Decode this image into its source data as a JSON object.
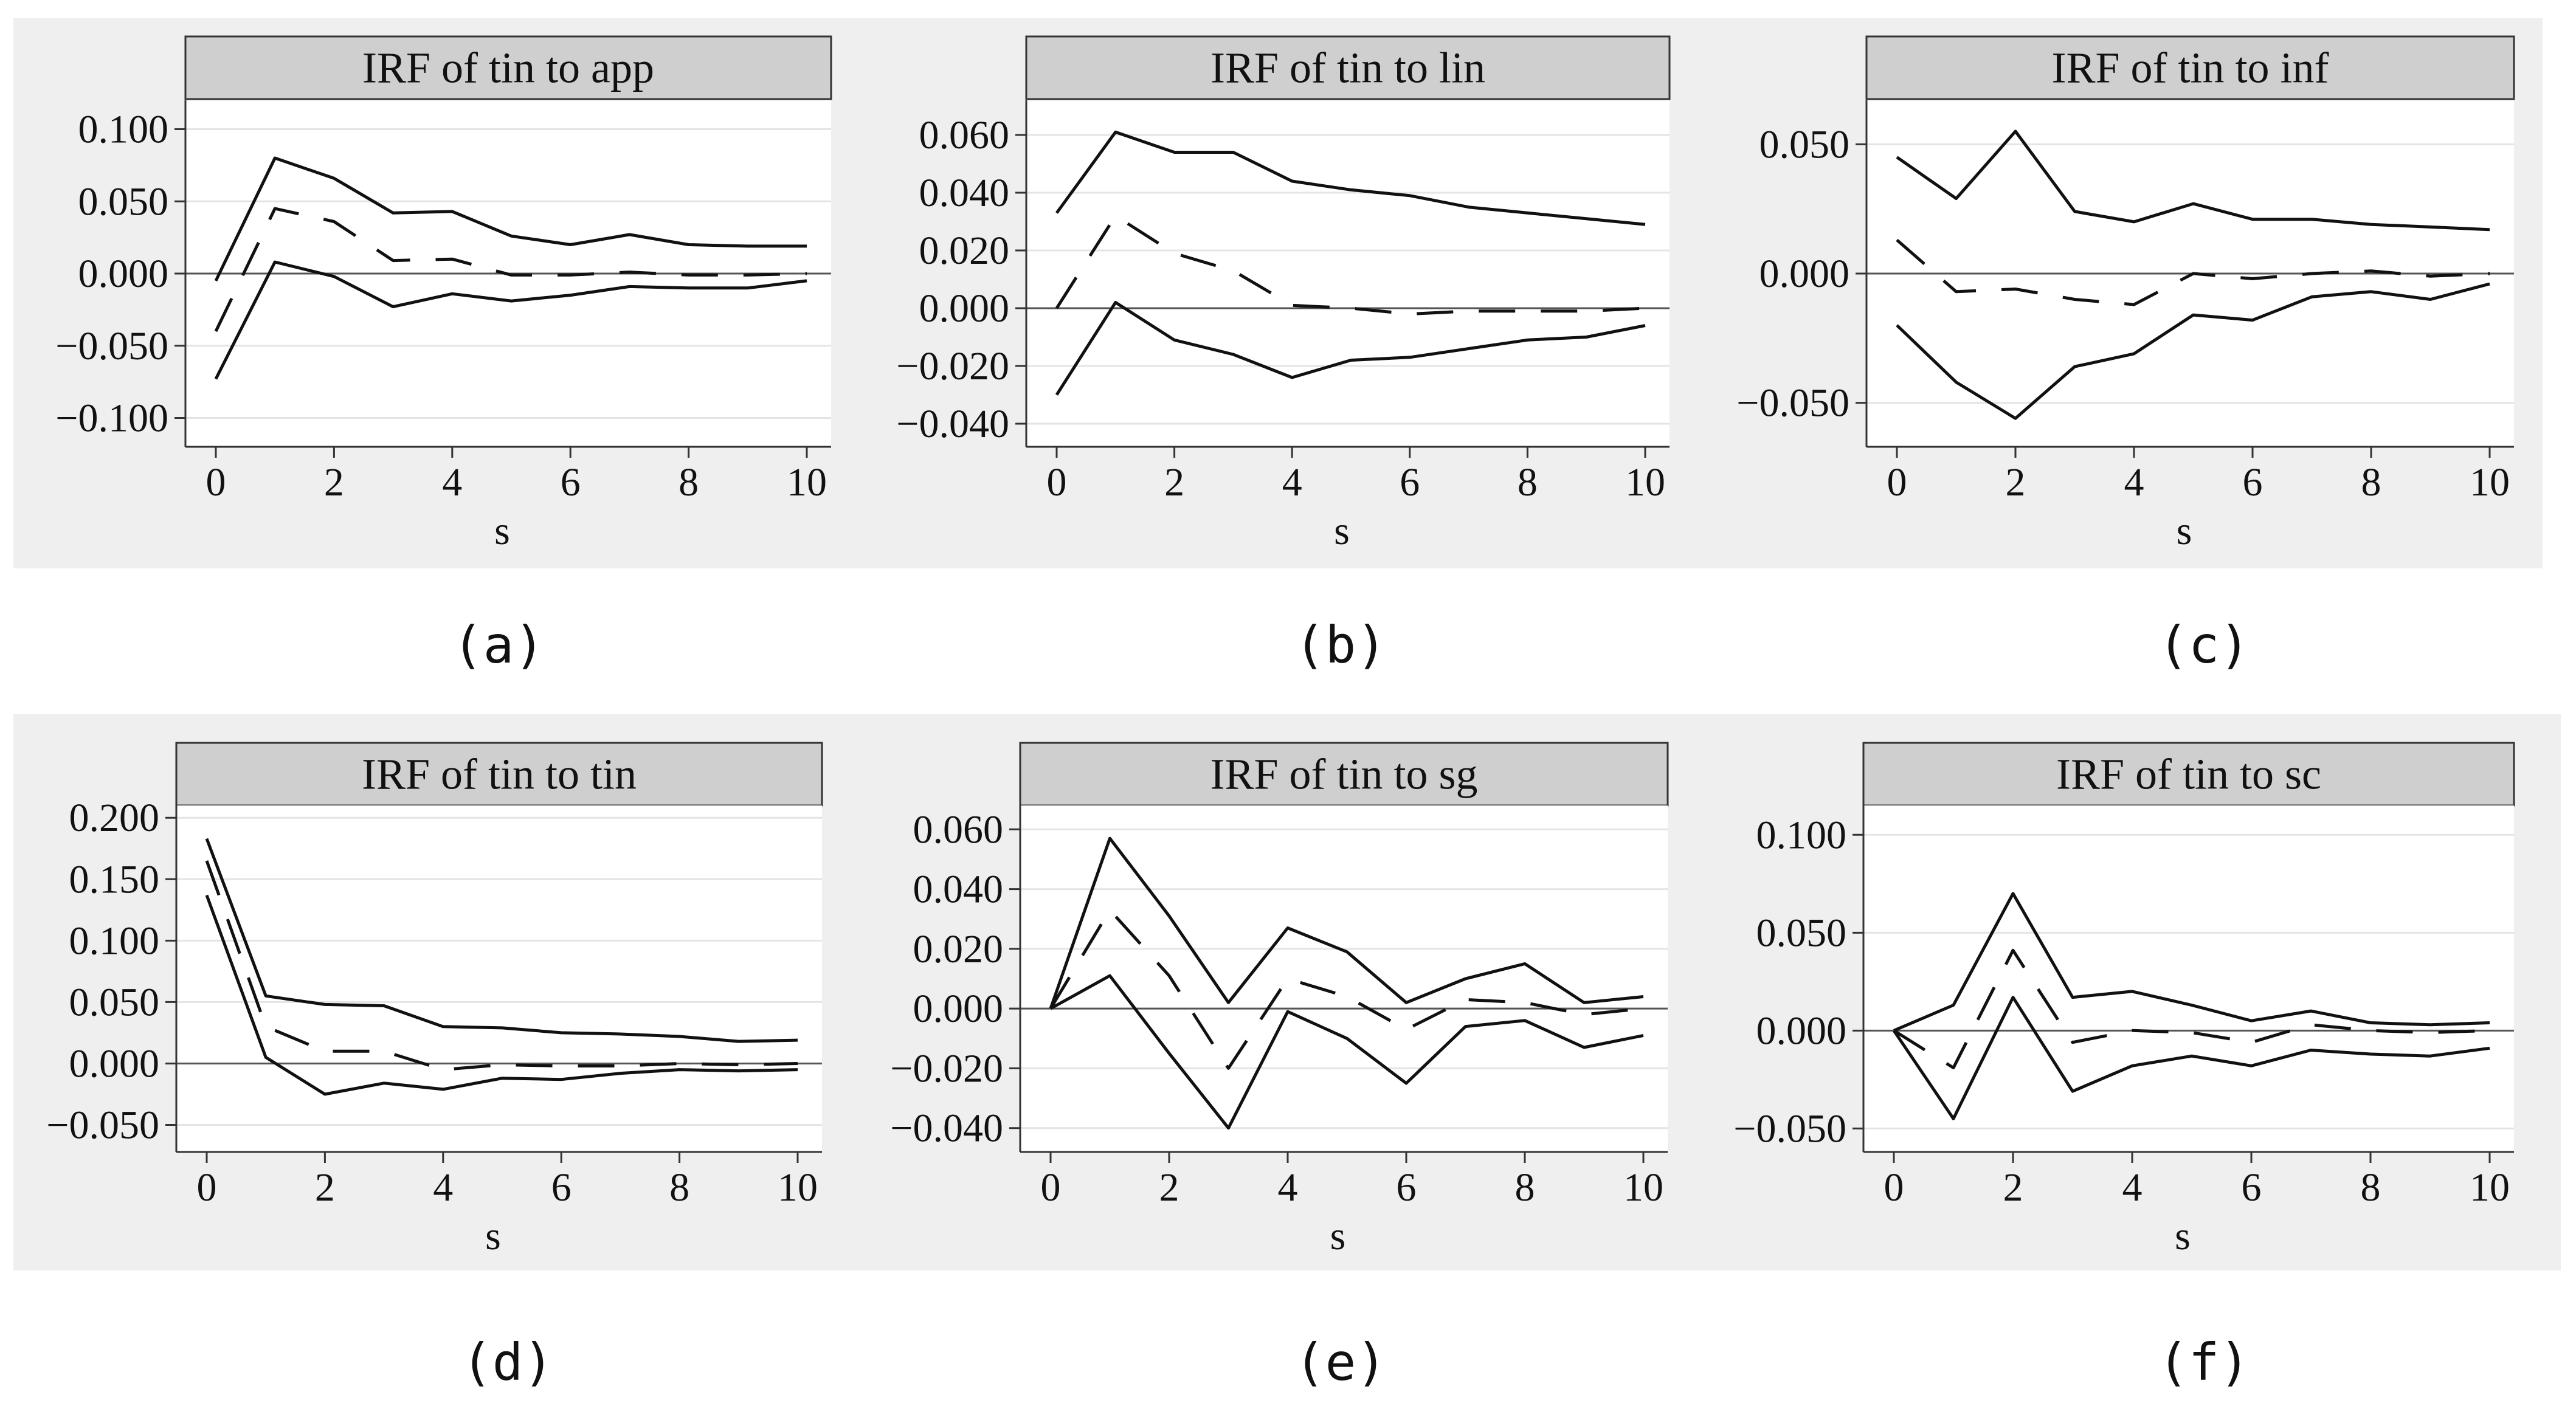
{
  "chart_data": [
    {
      "panel": "a",
      "type": "line",
      "title": "IRF of tin to app",
      "caption": "(a)",
      "xlabel": "s",
      "ylabel": "",
      "x": [
        0,
        1,
        2,
        3,
        4,
        5,
        6,
        7,
        8,
        9,
        10
      ],
      "ylim": [
        -0.12,
        0.12
      ],
      "yticks": [
        -0.1,
        -0.05,
        0,
        0.05,
        0.1
      ],
      "ytick_labels": [
        "−0.100",
        "−0.050",
        "0.000",
        "0.050",
        "0.100"
      ],
      "xticks": [
        0,
        2,
        4,
        6,
        8,
        10
      ],
      "xtick_labels": [
        "0",
        "2",
        "4",
        "6",
        "8",
        "10"
      ],
      "series": [
        {
          "name": "upper",
          "style": "solid",
          "values": [
            -0.005,
            0.08,
            0.066,
            0.042,
            0.043,
            0.026,
            0.02,
            0.027,
            0.02,
            0.019,
            0.019
          ]
        },
        {
          "name": "irf",
          "style": "dashed",
          "values": [
            -0.04,
            0.045,
            0.036,
            0.009,
            0.01,
            -0.001,
            -0.001,
            0.001,
            -0.001,
            -0.001,
            0.0
          ]
        },
        {
          "name": "lower",
          "style": "solid",
          "values": [
            -0.073,
            0.008,
            -0.002,
            -0.023,
            -0.014,
            -0.019,
            -0.015,
            -0.009,
            -0.01,
            -0.01,
            -0.005
          ]
        }
      ]
    },
    {
      "panel": "b",
      "type": "line",
      "title": "IRF of tin to lin",
      "caption": "(b)",
      "xlabel": "s",
      "ylabel": "",
      "x": [
        0,
        1,
        2,
        3,
        4,
        5,
        6,
        7,
        8,
        9,
        10
      ],
      "ylim": [
        -0.048,
        0.072
      ],
      "yticks": [
        -0.04,
        -0.02,
        0,
        0.02,
        0.04,
        0.06
      ],
      "ytick_labels": [
        "−0.040",
        "−0.020",
        "0.000",
        "0.020",
        "0.040",
        "0.060"
      ],
      "xticks": [
        0,
        2,
        4,
        6,
        8,
        10
      ],
      "xtick_labels": [
        "0",
        "2",
        "4",
        "6",
        "8",
        "10"
      ],
      "series": [
        {
          "name": "upper",
          "style": "solid",
          "values": [
            0.033,
            0.061,
            0.054,
            0.054,
            0.044,
            0.041,
            0.039,
            0.035,
            0.033,
            0.031,
            0.029
          ]
        },
        {
          "name": "irf",
          "style": "dashed",
          "values": [
            0.0,
            0.032,
            0.019,
            0.013,
            0.001,
            0.0,
            -0.002,
            -0.001,
            -0.001,
            -0.001,
            0.0
          ]
        },
        {
          "name": "lower",
          "style": "solid",
          "values": [
            -0.03,
            0.002,
            -0.011,
            -0.016,
            -0.024,
            -0.018,
            -0.017,
            -0.014,
            -0.011,
            -0.01,
            -0.006
          ]
        }
      ]
    },
    {
      "panel": "c",
      "type": "line",
      "title": "IRF of tin to inf",
      "caption": "(c)",
      "xlabel": "s",
      "ylabel": "",
      "x": [
        0,
        1,
        2,
        3,
        4,
        5,
        6,
        7,
        8,
        9,
        10
      ],
      "ylim": [
        -0.067,
        0.067
      ],
      "yticks": [
        -0.05,
        0,
        0.05
      ],
      "ytick_labels": [
        "−0.050",
        "0.000",
        "0.050"
      ],
      "xticks": [
        0,
        2,
        4,
        6,
        8,
        10
      ],
      "xtick_labels": [
        "0",
        "2",
        "4",
        "6",
        "8",
        "10"
      ],
      "series": [
        {
          "name": "upper",
          "style": "solid",
          "values": [
            0.045,
            0.029,
            0.055,
            0.024,
            0.02,
            0.027,
            0.021,
            0.021,
            0.019,
            0.018,
            0.017
          ]
        },
        {
          "name": "irf",
          "style": "dashed",
          "values": [
            0.013,
            -0.007,
            -0.006,
            -0.01,
            -0.012,
            0.0,
            -0.002,
            0.0,
            0.001,
            -0.001,
            0.0
          ]
        },
        {
          "name": "lower",
          "style": "solid",
          "values": [
            -0.02,
            -0.042,
            -0.056,
            -0.036,
            -0.031,
            -0.016,
            -0.018,
            -0.009,
            -0.007,
            -0.01,
            -0.004
          ]
        }
      ]
    },
    {
      "panel": "d",
      "type": "line",
      "title": "IRF of tin to tin",
      "caption": "(d)",
      "xlabel": "s",
      "ylabel": "",
      "x": [
        0,
        1,
        2,
        3,
        4,
        5,
        6,
        7,
        8,
        9,
        10
      ],
      "ylim": [
        -0.072,
        0.21
      ],
      "yticks": [
        -0.05,
        0,
        0.05,
        0.1,
        0.15,
        0.2
      ],
      "ytick_labels": [
        "−0.050",
        "0.000",
        "0.050",
        "0.100",
        "0.150",
        "0.200"
      ],
      "xticks": [
        0,
        2,
        4,
        6,
        8,
        10
      ],
      "xtick_labels": [
        "0",
        "2",
        "4",
        "6",
        "8",
        "10"
      ],
      "series": [
        {
          "name": "upper",
          "style": "solid",
          "values": [
            0.183,
            0.055,
            0.048,
            0.047,
            0.03,
            0.029,
            0.025,
            0.024,
            0.022,
            0.018,
            0.019
          ]
        },
        {
          "name": "irf",
          "style": "dashed",
          "values": [
            0.165,
            0.03,
            0.01,
            0.01,
            -0.005,
            -0.001,
            -0.002,
            -0.002,
            0.0,
            -0.001,
            0.0
          ]
        },
        {
          "name": "lower",
          "style": "solid",
          "values": [
            0.137,
            0.005,
            -0.025,
            -0.016,
            -0.021,
            -0.012,
            -0.013,
            -0.008,
            -0.005,
            -0.006,
            -0.005
          ]
        }
      ]
    },
    {
      "panel": "e",
      "type": "line",
      "title": "IRF of tin to sg",
      "caption": "(e)",
      "xlabel": "s",
      "ylabel": "",
      "x": [
        0,
        1,
        2,
        3,
        4,
        5,
        6,
        7,
        8,
        9,
        10
      ],
      "ylim": [
        -0.048,
        0.068
      ],
      "yticks": [
        -0.04,
        -0.02,
        0,
        0.02,
        0.04,
        0.06
      ],
      "ytick_labels": [
        "−0.040",
        "−0.020",
        "0.000",
        "0.020",
        "0.040",
        "0.060"
      ],
      "xticks": [
        0,
        2,
        4,
        6,
        8,
        10
      ],
      "xtick_labels": [
        "0",
        "2",
        "4",
        "6",
        "8",
        "10"
      ],
      "series": [
        {
          "name": "upper",
          "style": "solid",
          "values": [
            0.0,
            0.057,
            0.031,
            0.002,
            0.027,
            0.019,
            0.002,
            0.01,
            0.015,
            0.002,
            0.004
          ]
        },
        {
          "name": "irf",
          "style": "dashed",
          "values": [
            0.0,
            0.033,
            0.011,
            -0.02,
            0.01,
            0.004,
            -0.007,
            0.003,
            0.002,
            -0.002,
            0.0
          ]
        },
        {
          "name": "lower",
          "style": "solid",
          "values": [
            0.0,
            0.011,
            -0.015,
            -0.04,
            -0.001,
            -0.01,
            -0.025,
            -0.006,
            -0.004,
            -0.013,
            -0.009
          ]
        }
      ]
    },
    {
      "panel": "f",
      "type": "line",
      "title": "IRF of tin to sc",
      "caption": "(f)",
      "xlabel": "s",
      "ylabel": "",
      "x": [
        0,
        1,
        2,
        3,
        4,
        5,
        6,
        7,
        8,
        9,
        10
      ],
      "ylim": [
        -0.062,
        0.115
      ],
      "yticks": [
        -0.05,
        0,
        0.05,
        0.1
      ],
      "ytick_labels": [
        "−0.050",
        "0.000",
        "0.050",
        "0.100"
      ],
      "xticks": [
        0,
        2,
        4,
        6,
        8,
        10
      ],
      "xtick_labels": [
        "0",
        "2",
        "4",
        "6",
        "8",
        "10"
      ],
      "series": [
        {
          "name": "upper",
          "style": "solid",
          "values": [
            0.0,
            0.013,
            0.07,
            0.017,
            0.02,
            0.013,
            0.005,
            0.01,
            0.004,
            0.003,
            0.004
          ]
        },
        {
          "name": "irf",
          "style": "dashed",
          "values": [
            0.0,
            -0.019,
            0.041,
            -0.006,
            0.0,
            -0.001,
            -0.006,
            0.003,
            0.0,
            -0.001,
            0.0
          ]
        },
        {
          "name": "lower",
          "style": "solid",
          "values": [
            0.0,
            -0.045,
            0.017,
            -0.031,
            -0.018,
            -0.013,
            -0.018,
            -0.01,
            -0.012,
            -0.013,
            -0.009
          ]
        }
      ]
    }
  ]
}
